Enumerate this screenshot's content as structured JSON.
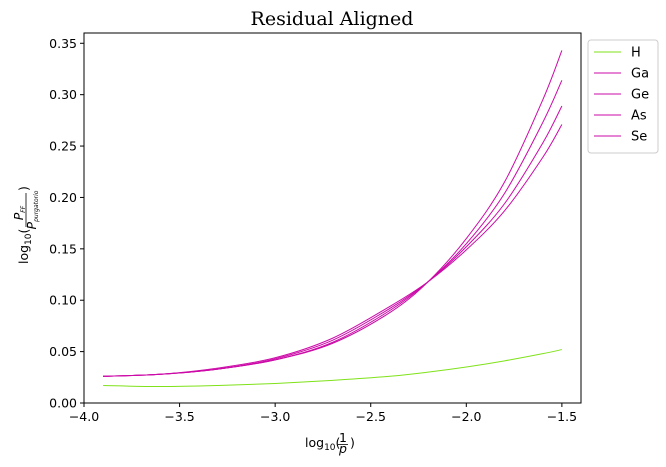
{
  "chart_data": {
    "type": "line",
    "title": "Residual Aligned",
    "xlabel": "log10(1/p)",
    "ylabel": "log10(P_FF / P_purgatorio)",
    "xlim": [
      -4.0,
      -1.4
    ],
    "ylim": [
      0.0,
      0.36
    ],
    "xticks": [
      -4.0,
      -3.5,
      -3.0,
      -2.5,
      -2.0,
      -1.5
    ],
    "xtick_labels": [
      "−4.0",
      "−3.5",
      "−3.0",
      "−2.5",
      "−2.0",
      "−1.5"
    ],
    "yticks": [
      0.0,
      0.05,
      0.1,
      0.15,
      0.2,
      0.25,
      0.3,
      0.35
    ],
    "ytick_labels": [
      "0.00",
      "0.05",
      "0.10",
      "0.15",
      "0.20",
      "0.25",
      "0.30",
      "0.35"
    ],
    "grid": false,
    "legend_position": "outside-top-right",
    "x": [
      -3.9,
      -3.6,
      -3.3,
      -3.0,
      -2.7,
      -2.4,
      -2.2,
      -2.0,
      -1.8,
      -1.6,
      -1.5
    ],
    "series": [
      {
        "name": "H",
        "color": "#7fe21a",
        "values": [
          0.017,
          0.016,
          0.017,
          0.019,
          0.022,
          0.026,
          0.03,
          0.035,
          0.041,
          0.048,
          0.052
        ]
      },
      {
        "name": "Ga",
        "color": "#cc0aa8",
        "values": [
          0.026,
          0.028,
          0.033,
          0.042,
          0.058,
          0.088,
          0.118,
          0.16,
          0.215,
          0.295,
          0.343
        ]
      },
      {
        "name": "Ge",
        "color": "#cc0aa8",
        "values": [
          0.026,
          0.028,
          0.033,
          0.042,
          0.059,
          0.09,
          0.118,
          0.155,
          0.204,
          0.273,
          0.314
        ]
      },
      {
        "name": "As",
        "color": "#cc0aa8",
        "values": [
          0.026,
          0.028,
          0.033,
          0.043,
          0.061,
          0.092,
          0.118,
          0.152,
          0.194,
          0.253,
          0.289
        ]
      },
      {
        "name": "Se",
        "color": "#cc0aa8",
        "values": [
          0.026,
          0.028,
          0.034,
          0.044,
          0.063,
          0.094,
          0.118,
          0.149,
          0.187,
          0.239,
          0.271
        ]
      }
    ]
  }
}
